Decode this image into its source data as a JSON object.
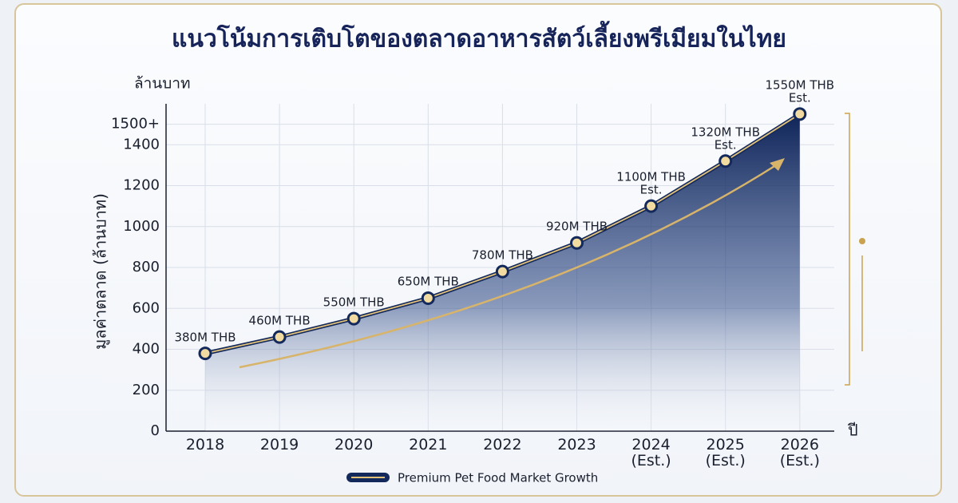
{
  "chart_data": {
    "type": "area",
    "title": "แนวโน้มการเติบโตของตลาดอาหารสัตว์เลี้ยงพรีเมียมในไทย",
    "unit_label": "ล้านบาท",
    "y_label": "มูลค่าตลาด (ล้านบาท)",
    "x_label": "ปี",
    "categories": [
      "2018",
      "2019",
      "2020",
      "2021",
      "2022",
      "2023",
      "2024\n(Est.)",
      "2025\n(Est.)",
      "2026\n(Est.)"
    ],
    "series": [
      {
        "name": "Premium Pet Food Market Growth",
        "color": "#13295b",
        "values": [
          380,
          460,
          550,
          650,
          780,
          920,
          1100,
          1320,
          1550
        ],
        "value_labels": [
          "380M THB",
          "460M THB",
          "550M THB",
          "650M THB",
          "780M THB",
          "920M THB",
          "1100M THB\nEst.",
          "1320M THB\nEst.",
          "1550M THB\nEst."
        ]
      }
    ],
    "ylim": [
      0,
      1600
    ],
    "yticks": [
      0,
      200,
      400,
      600,
      800,
      1000,
      1200,
      1400,
      {
        "value": 1500,
        "label": "1500+"
      }
    ],
    "grid": true
  }
}
